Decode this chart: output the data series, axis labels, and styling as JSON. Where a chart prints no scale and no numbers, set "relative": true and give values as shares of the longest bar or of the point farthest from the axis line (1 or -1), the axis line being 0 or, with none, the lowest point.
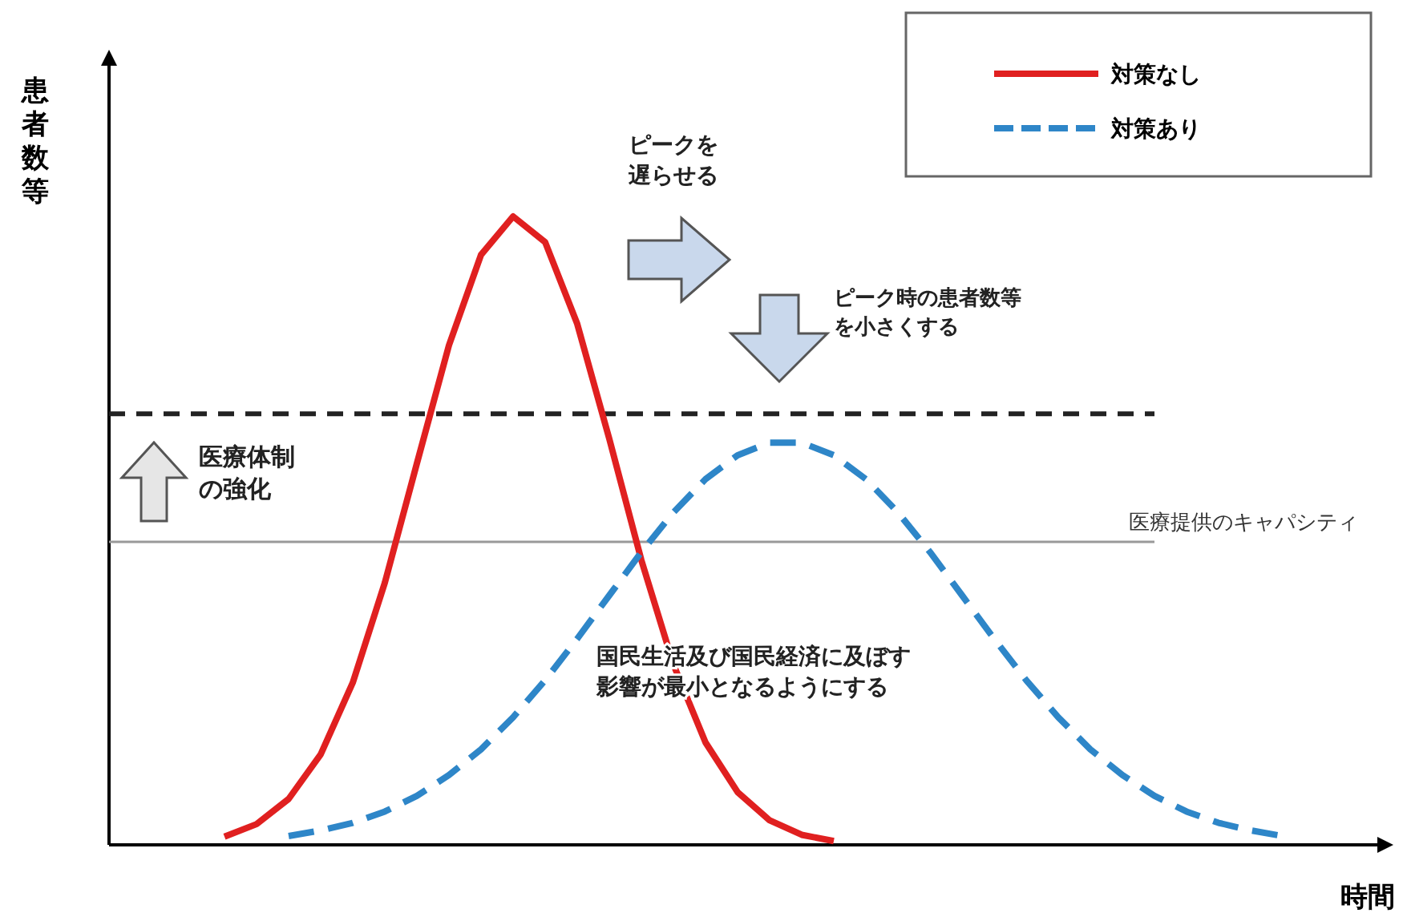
{
  "chart_data": {
    "type": "line",
    "relative": true,
    "xlabel": "時間",
    "ylabel": "患者数等",
    "legend": "top right",
    "categories": [
      null,
      null,
      null,
      null,
      null,
      null,
      null,
      null,
      null,
      null,
      null,
      null,
      null,
      null,
      null,
      null,
      null,
      null,
      null,
      null,
      null,
      null,
      null,
      null,
      null,
      null,
      null,
      null,
      null,
      null,
      null,
      null,
      null,
      null,
      null,
      null,
      null,
      null
    ],
    "series": [
      {
        "name": "対策なし",
        "color": "#e02020",
        "line_style": "solid",
        "values": [
          null,
          null,
          0.013,
          0.033,
          0.073,
          0.144,
          0.258,
          0.417,
          0.607,
          0.795,
          0.939,
          1,
          0.959,
          0.829,
          0.646,
          0.453,
          0.287,
          0.163,
          0.084,
          0.039,
          0.016,
          0.006,
          null,
          null,
          null,
          null,
          null,
          null,
          null,
          null,
          null,
          null,
          null,
          null,
          null,
          null,
          null,
          null
        ]
      },
      {
        "name": "対策あり",
        "color": "#2e86c8",
        "line_style": "dashed",
        "values": [
          null,
          null,
          null,
          null,
          0.014,
          0.023,
          0.035,
          0.053,
          0.078,
          0.111,
          0.152,
          0.203,
          0.262,
          0.328,
          0.397,
          0.466,
          0.529,
          0.582,
          0.62,
          0.64,
          0.64,
          0.62,
          0.582,
          0.529,
          0.466,
          0.397,
          0.328,
          0.262,
          0.203,
          0.152,
          0.111,
          0.078,
          0.053,
          0.035,
          0.023,
          0.014,
          null,
          null
        ]
      }
    ],
    "ref_lines": [
      {
        "axis": "y",
        "value": 0.686,
        "label": null,
        "color": "#222222",
        "line_style": "dashed"
      },
      {
        "axis": "y",
        "value": 0.482,
        "label": "医療提供のキャパシティ",
        "color": "#999999",
        "line_style": "solid"
      }
    ],
    "annotations": [
      "ピークを遅らせる",
      "ピーク時の患者数等を小さくする",
      "医療体制の強化",
      "国民生活及び国民経済に及ぼす影響が最小となるようにする"
    ]
  }
}
